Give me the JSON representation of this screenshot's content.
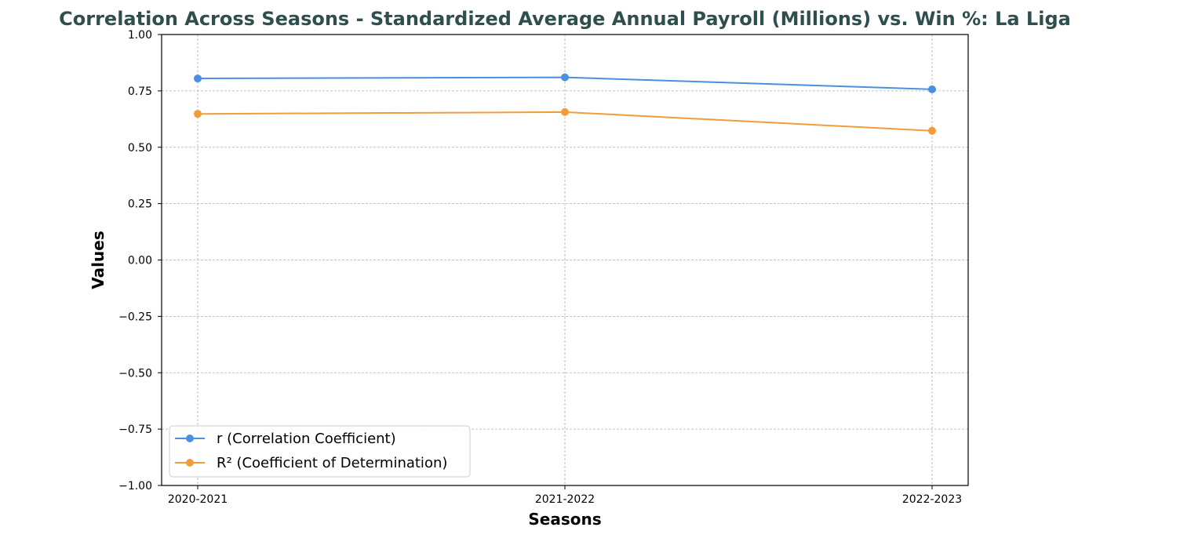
{
  "chart_data": {
    "type": "line",
    "title": "Correlation Across Seasons - Standardized Average Annual Payroll (Millions) vs. Win %: La Liga",
    "xlabel": "Seasons",
    "ylabel": "Values",
    "categories": [
      "2020-2021",
      "2021-2022",
      "2022-2023"
    ],
    "ylim": [
      -1.0,
      1.0
    ],
    "yticks": [
      -1.0,
      -0.75,
      -0.5,
      -0.25,
      0.0,
      0.25,
      0.5,
      0.75,
      1.0
    ],
    "ytick_labels": [
      "−1.00",
      "−0.75",
      "−0.50",
      "−0.25",
      "0.00",
      "0.25",
      "0.50",
      "0.75",
      "1.00"
    ],
    "grid": true,
    "legend_position": "bottom-left",
    "series": [
      {
        "name": "r (Correlation Coefficient)",
        "color": "#4a90e2",
        "values": [
          0.805,
          0.81,
          0.757
        ]
      },
      {
        "name": "R² (Coefficient of Determination)",
        "color": "#f39c3c",
        "values": [
          0.648,
          0.656,
          0.573
        ]
      }
    ]
  }
}
